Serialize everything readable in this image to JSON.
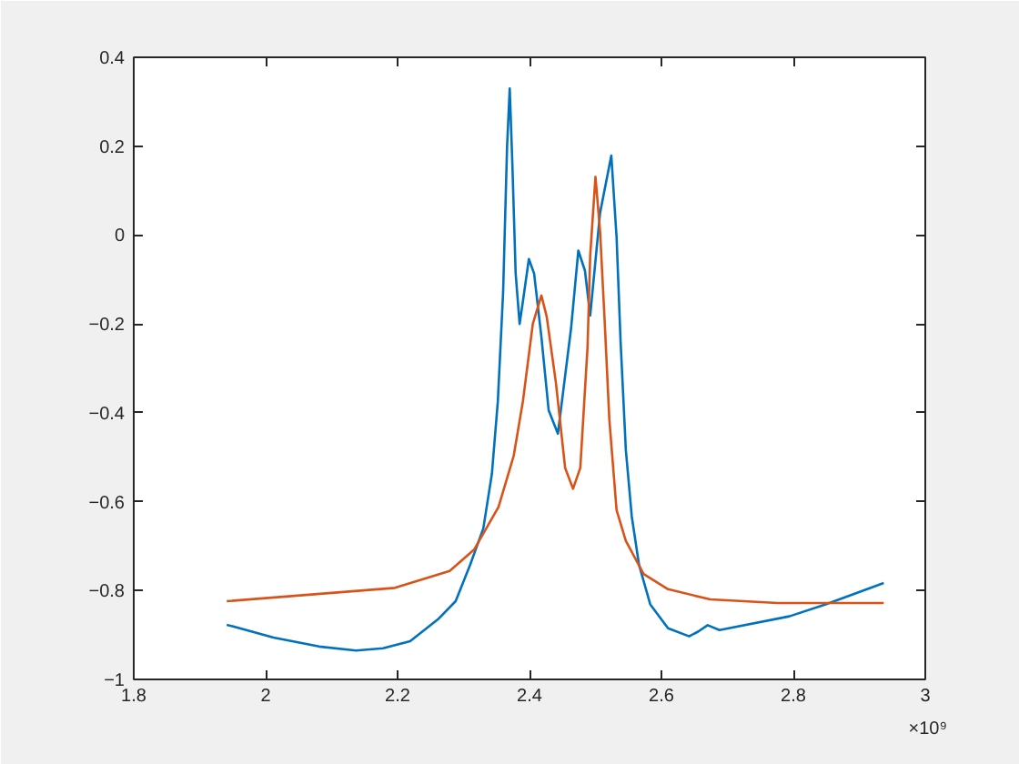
{
  "chart_data": {
    "type": "line",
    "xlim": [
      1.8,
      3
    ],
    "xticks": [
      1.8,
      2,
      2.2,
      2.4,
      2.6,
      2.8,
      3
    ],
    "ylim": [
      -1,
      0.4
    ],
    "yticks": [
      -1,
      -0.8,
      -0.6,
      -0.4,
      -0.2,
      0,
      0.2,
      0.4
    ],
    "grid": false,
    "marker": "none",
    "line_style": "solid",
    "annotations": [
      "×10⁹"
    ],
    "series": [
      {
        "color": "#0072bd",
        "x": [
          1.941,
          2.012,
          2.081,
          2.137,
          2.178,
          2.219,
          2.261,
          2.288,
          2.31,
          2.33,
          2.343,
          2.352,
          2.36,
          2.366,
          2.37,
          2.374,
          2.379,
          2.385,
          2.39,
          2.399,
          2.407,
          2.418,
          2.429,
          2.443,
          2.463,
          2.474,
          2.484,
          2.492,
          2.507,
          2.524,
          2.532,
          2.538,
          2.546,
          2.555,
          2.566,
          2.583,
          2.61,
          2.642,
          2.656,
          2.67,
          2.688,
          2.794,
          2.849,
          2.937
        ],
        "values": [
          -0.877,
          -0.906,
          -0.926,
          -0.935,
          -0.93,
          -0.914,
          -0.865,
          -0.824,
          -0.742,
          -0.66,
          -0.537,
          -0.374,
          -0.128,
          0.2,
          0.33,
          0.16,
          -0.087,
          -0.2,
          -0.149,
          -0.054,
          -0.087,
          -0.229,
          -0.394,
          -0.447,
          -0.21,
          -0.035,
          -0.08,
          -0.181,
          0.05,
          0.179,
          -0.005,
          -0.237,
          -0.483,
          -0.633,
          -0.742,
          -0.831,
          -0.885,
          -0.903,
          -0.892,
          -0.878,
          -0.889,
          -0.858,
          -0.831,
          -0.783
        ]
      },
      {
        "color": "#d95319",
        "x": [
          1.941,
          2.196,
          2.279,
          2.316,
          2.353,
          2.376,
          2.39,
          2.405,
          2.418,
          2.426,
          2.44,
          2.454,
          2.466,
          2.477,
          2.488,
          2.492,
          2.5,
          2.507,
          2.514,
          2.521,
          2.532,
          2.546,
          2.573,
          2.61,
          2.674,
          2.776,
          2.937
        ],
        "values": [
          -0.824,
          -0.794,
          -0.756,
          -0.708,
          -0.612,
          -0.497,
          -0.374,
          -0.2,
          -0.136,
          -0.183,
          -0.332,
          -0.524,
          -0.571,
          -0.524,
          -0.251,
          -0.046,
          0.131,
          0.008,
          -0.196,
          -0.415,
          -0.619,
          -0.688,
          -0.763,
          -0.797,
          -0.82,
          -0.828,
          -0.828
        ]
      }
    ]
  }
}
